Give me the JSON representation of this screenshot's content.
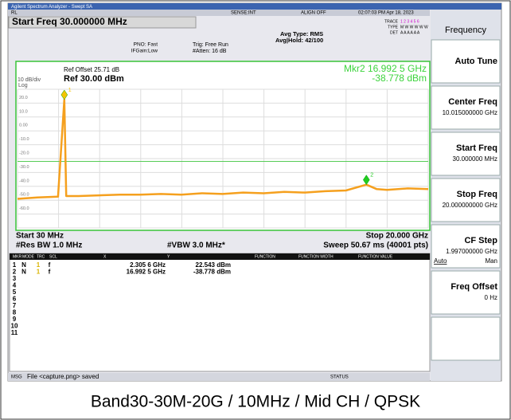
{
  "window_title": "Agilent Spectrum Analyzer - Swept SA",
  "status_bar": {
    "rl": "RL",
    "sense": "SENSE:INT",
    "align": "ALIGN OFF",
    "time": "02:07:03 PM Apr 18, 2023"
  },
  "header": {
    "active_function": "Start Freq 30.000000 MHz",
    "pno": "PNO: Fast",
    "if_gain": "IFGain:Low",
    "trigger": "Trig: Free Run",
    "atten": "#Atten: 16 dB",
    "avg_type": "Avg Type: RMS",
    "avg_hold": "Avg|Hold: 42/100",
    "trace_label": "TRACE",
    "trace_nums": "1 2 3 4 5 6",
    "type_label": "TYPE",
    "type_value": "M W W W W W",
    "det_label": "DET",
    "det_value": "A A A A A A"
  },
  "plot": {
    "ref_offset": "Ref Offset 25.71 dB",
    "scale": "10 dB/div",
    "ref_level": "Ref 30.00 dBm",
    "log": "Log",
    "marker_readout": [
      "Mkr2 16.992 5 GHz",
      "-38.778 dBm"
    ],
    "start": "Start 30 MHz",
    "stop": "Stop 20.000 GHz",
    "rbw": "#Res BW 1.0 MHz",
    "vbw": "#VBW 3.0 MHz*",
    "sweep": "Sweep  50.67 ms (40001 pts)",
    "xlim": [
      0.03,
      20
    ],
    "ylim": [
      -70,
      30
    ],
    "yticks": [
      {
        "value": 20,
        "label": "20.0"
      },
      {
        "value": 10,
        "label": "10.0"
      },
      {
        "value": 0,
        "label": "0.00"
      },
      {
        "value": -10,
        "label": "-10.0"
      },
      {
        "value": -20,
        "label": "-20.0"
      },
      {
        "value": -30,
        "label": "-30.0"
      },
      {
        "value": -40,
        "label": "-40.0"
      },
      {
        "value": -50,
        "label": "-50.0"
      },
      {
        "value": -60,
        "label": "-60.0"
      }
    ],
    "display_line": -22,
    "trace": {
      "color": "#f5a01e",
      "x": [
        0.03,
        1,
        2,
        2.3056,
        2.4,
        3,
        4,
        5,
        6,
        7,
        8,
        9,
        10,
        11,
        12,
        13,
        14,
        15,
        16,
        16.9925,
        17.5,
        18,
        19,
        20
      ],
      "values": [
        -49,
        -48,
        -47.5,
        22.543,
        -47,
        -47,
        -46.5,
        -46,
        -46,
        -45.5,
        -46,
        -45,
        -45.5,
        -44.5,
        -45,
        -44,
        -44.5,
        -43.5,
        -43,
        -38.778,
        -42,
        -42.5,
        -41.5,
        -42
      ]
    },
    "markers": [
      {
        "label": "1",
        "x": 2.3056,
        "y": 22.543,
        "color": "#f5c400"
      },
      {
        "label": "2",
        "x": 16.9925,
        "y": -38.778,
        "color": "#22cc22"
      }
    ]
  },
  "marker_table": {
    "headers": [
      "MKR",
      "MODE",
      "TRC",
      "SCL",
      "X",
      "Y",
      "FUNCTION",
      "FUNCTION WIDTH",
      "FUNCTION VALUE"
    ],
    "rows": [
      [
        "1",
        "N",
        "1",
        "f",
        "2.305 6 GHz",
        "22.543 dBm"
      ],
      [
        "2",
        "N",
        "1",
        "f",
        "16.992 5 GHz",
        "-38.778 dBm"
      ],
      [
        "3"
      ],
      [
        "4"
      ],
      [
        "5"
      ],
      [
        "6"
      ],
      [
        "7"
      ],
      [
        "8"
      ],
      [
        "9"
      ],
      [
        "10"
      ],
      [
        "11"
      ]
    ]
  },
  "softkeys": {
    "title": "Frequency",
    "keys": [
      {
        "label": "Auto Tune"
      },
      {
        "label": "Center Freq",
        "value": "10.015000000 GHz"
      },
      {
        "label": "Start Freq",
        "value": "30.000000 MHz"
      },
      {
        "label": "Stop Freq",
        "value": "20.000000000 GHz"
      },
      {
        "label": "CF Step",
        "value": "1.997000000 GHz",
        "options": [
          "Auto",
          "Man"
        ]
      },
      {
        "label": "Freq Offset",
        "value": "0 Hz"
      }
    ]
  },
  "message_bar": {
    "msg": "MSG",
    "text": "File <capture.png> saved",
    "status": "STATUS"
  },
  "caption": "Band30-30M-20G / 10MHz / Mid CH / QPSK"
}
